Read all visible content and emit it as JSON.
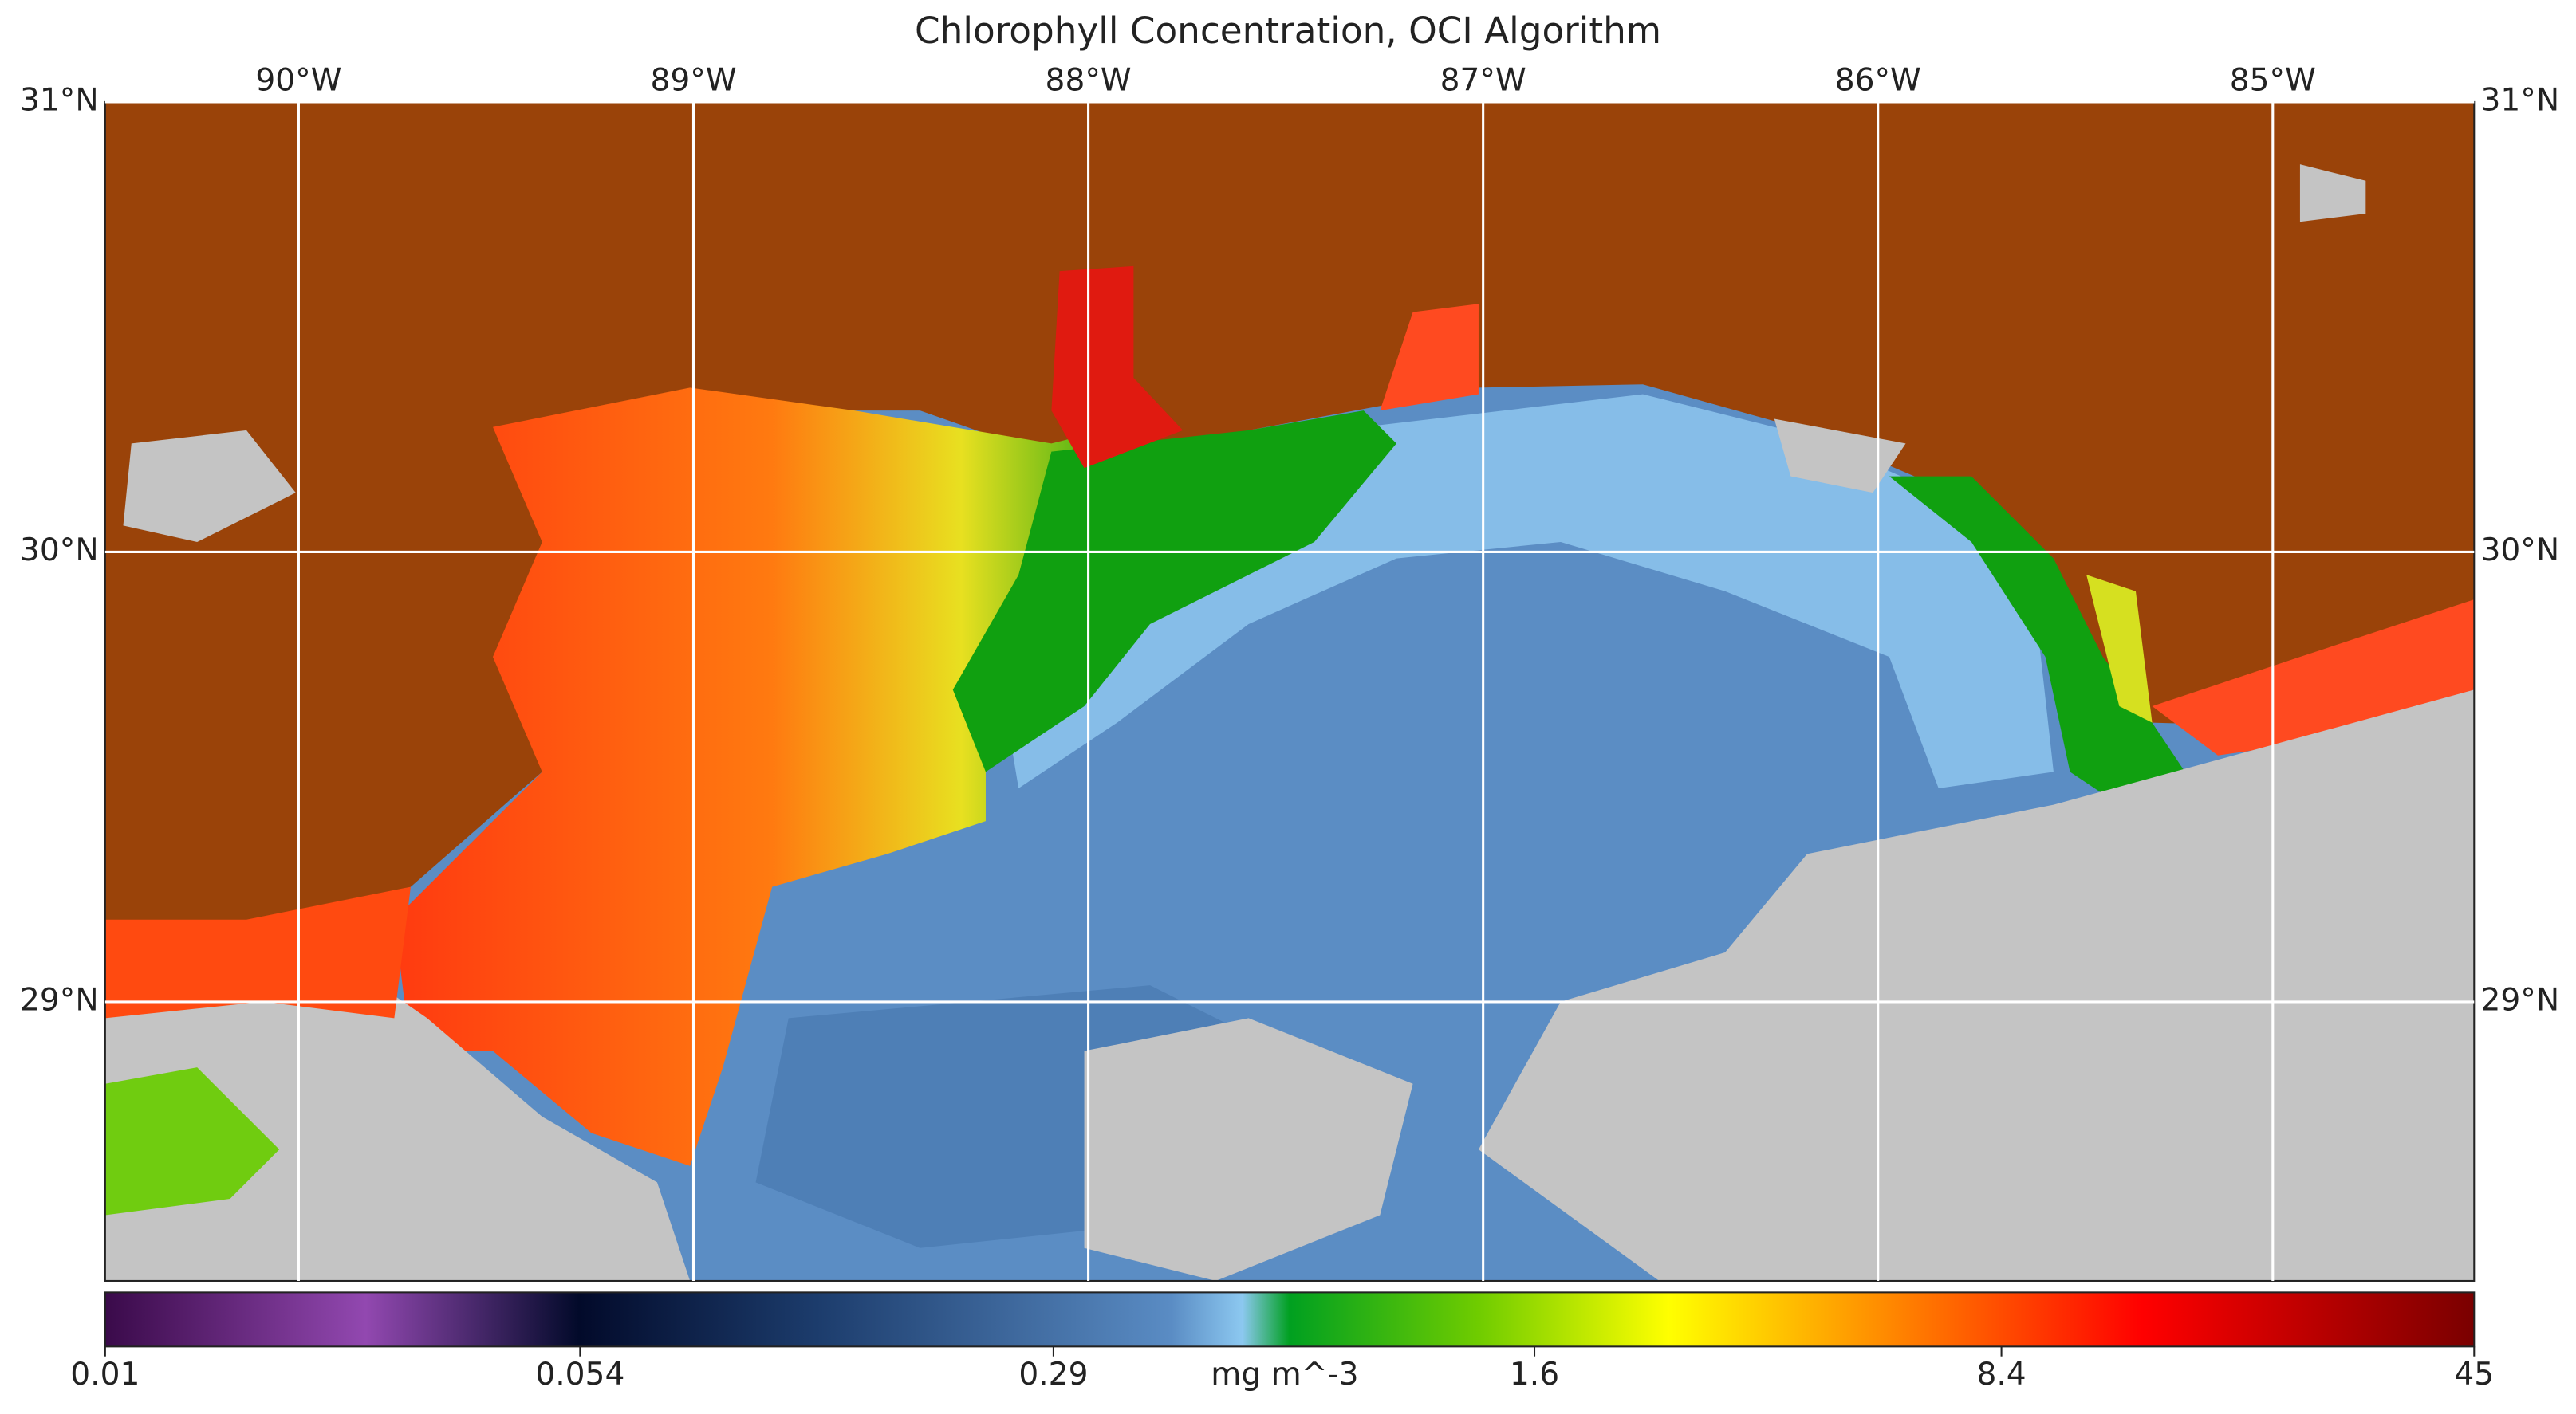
{
  "title": "Chlorophyll Concentration, OCI Algorithm",
  "map": {
    "lonlim": [
      -90.49,
      -84.49
    ],
    "latlim": [
      28.38,
      31.0
    ],
    "lon_ticks": [
      {
        "value": -90,
        "label": "90°W"
      },
      {
        "value": -89,
        "label": "89°W"
      },
      {
        "value": -88,
        "label": "88°W"
      },
      {
        "value": -87,
        "label": "87°W"
      },
      {
        "value": -86,
        "label": "86°W"
      },
      {
        "value": -85,
        "label": "85°W"
      }
    ],
    "lat_ticks": [
      {
        "value": 31,
        "label": "31°N"
      },
      {
        "value": 30,
        "label": "30°N"
      },
      {
        "value": 29,
        "label": "29°N"
      }
    ]
  },
  "colorbar": {
    "lim": [
      0.01,
      45
    ],
    "log": true,
    "ticks": [
      0.01,
      0.054,
      0.29,
      1.6,
      8.4,
      45
    ],
    "unit": "mg m^-3"
  }
}
